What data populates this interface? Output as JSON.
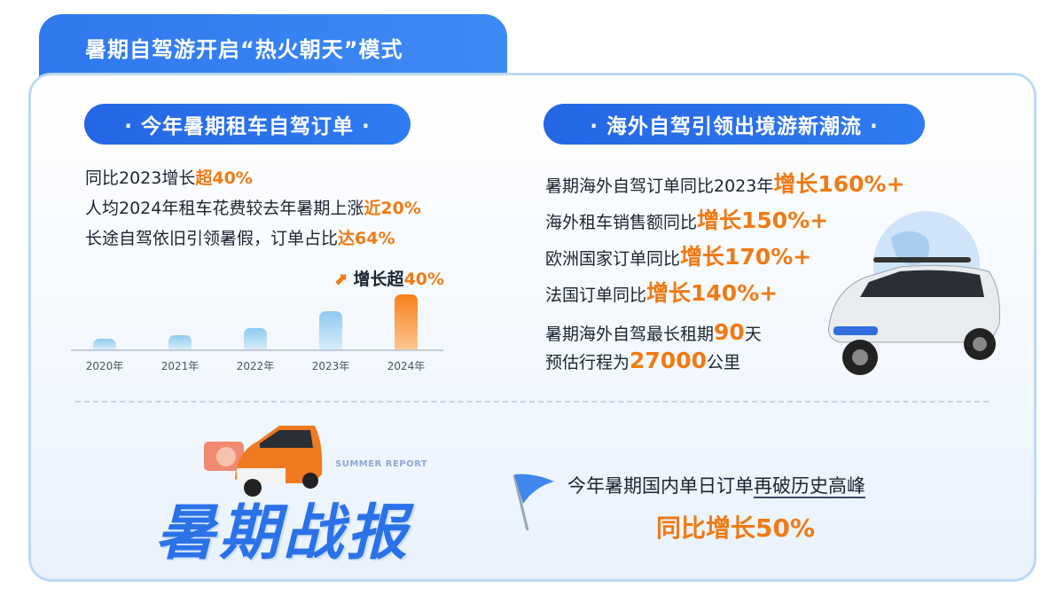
{
  "header": {
    "title": "暑期自驾游开启“热火朝天”模式"
  },
  "left": {
    "pill": "· 今年暑期租车自驾订单 ·",
    "lines": [
      {
        "text": "同比2023增长",
        "hl": "超40%"
      },
      {
        "text": "人均2024年租车花费较去年暑期上涨",
        "hl": "近20%"
      },
      {
        "text": "长途自驾依旧引领暑假，订单占比",
        "hl": "达64%"
      }
    ]
  },
  "chart_data": {
    "type": "bar",
    "categories": [
      "2020年",
      "2021年",
      "2022年",
      "2023年",
      "2024年"
    ],
    "relative_values": [
      20,
      26,
      38,
      69,
      100
    ],
    "annotation": {
      "text": "增长超",
      "hl": "40%"
    },
    "colors": {
      "past": "#8ecaf0",
      "current": "#f7861c"
    }
  },
  "right": {
    "pill": "· 海外自驾引领出境游新潮流 ·",
    "lines": [
      {
        "text": "暑期海外自驾订单同比2023年",
        "hl": "增长160%+"
      },
      {
        "text": "海外租车销售额同比",
        "hl": "增长150%+"
      },
      {
        "text": "欧洲国家订单同比",
        "hl": "增长170%+"
      },
      {
        "text": "法国订单同比",
        "hl": "增长140%+"
      }
    ],
    "rental": {
      "a": "暑期海外自驾最长租期",
      "v": "90",
      "b": "天"
    },
    "distance": {
      "a": "预估行程为",
      "v": "27000",
      "b": "公里"
    }
  },
  "bottom": {
    "logo_text": "暑期战报",
    "logo_sub": "SUMMER REPORT",
    "line1_a": "今年暑期国内单日订单",
    "line1_b": "再破历史高峰",
    "line2": "同比增长50%"
  },
  "colors": {
    "accent": "#2466e6",
    "orange": "#f07a14",
    "border": "#bcd8f6"
  }
}
